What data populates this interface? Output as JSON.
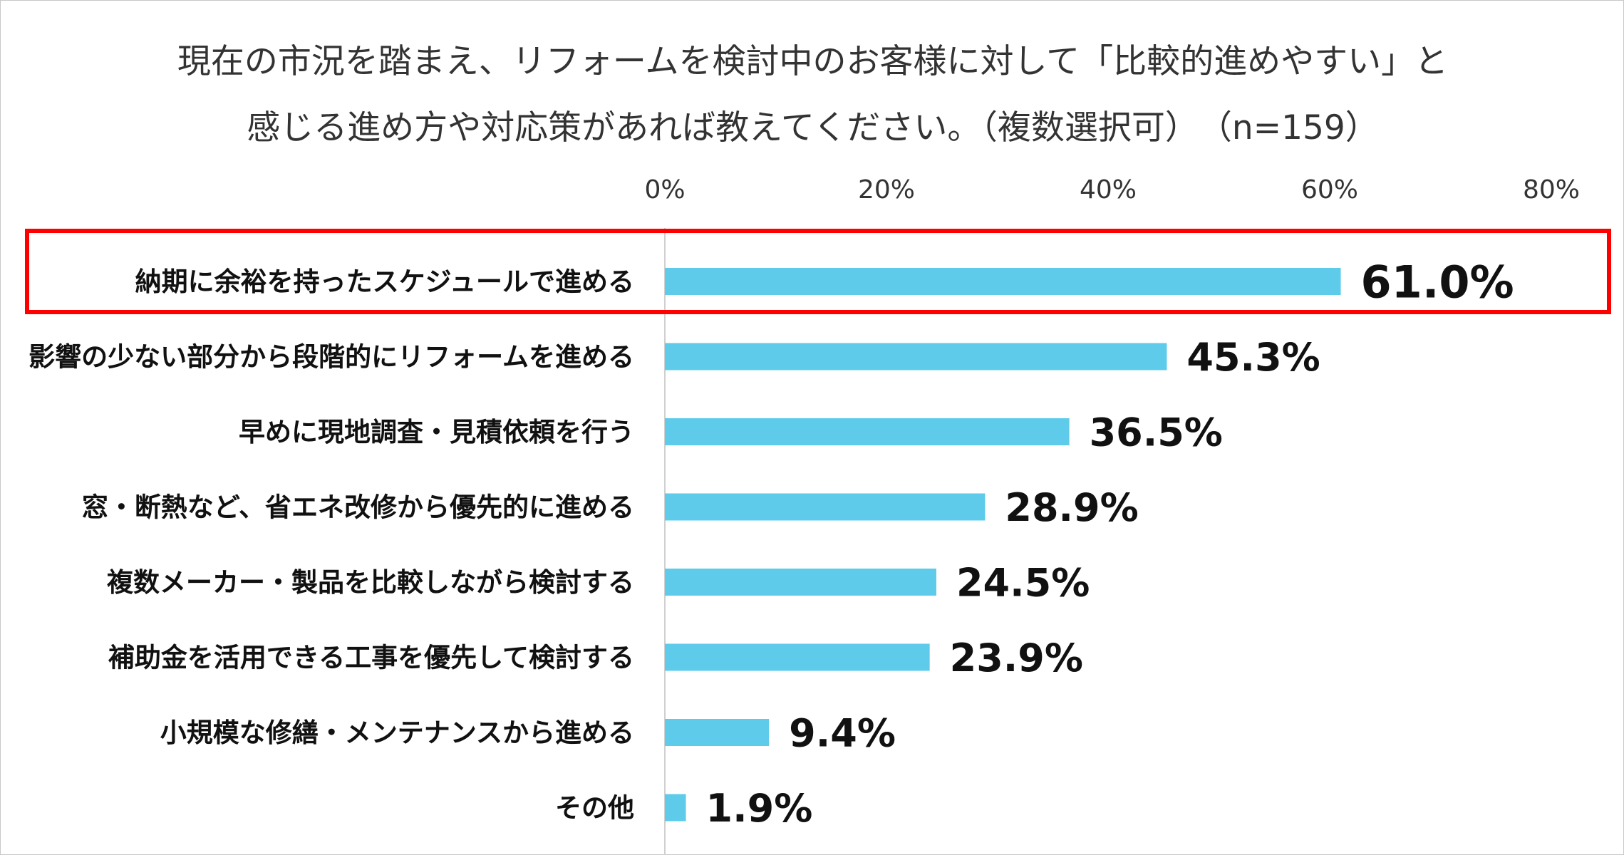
{
  "title": {
    "line1": "現在の市況を踏まえ、リフォームを検討中のお客様に対して「比較的進めやすい」と",
    "line2": "感じる進め方や対応策があれば教えてください。（複数選択可）　（n=159）"
  },
  "chart_data": {
    "type": "bar",
    "orientation": "horizontal",
    "title": "現在の市況を踏まえ、リフォームを検討中のお客様に対して「比較的進めやすい」と感じる進め方や対応策があれば教えてください。（複数選択可）　（n=159）",
    "categories": [
      "納期に余裕を持ったスケジュールで進める",
      "影響の少ない部分から段階的にリフォームを進める",
      "早めに現地調査・見積依頼を行う",
      "窓・断熱など、省エネ改修から優先的に進める",
      "複数メーカー・製品を比較しながら検討する",
      "補助金を活用できる工事を優先して検討する",
      "小規模な修繕・メンテナンスから進める",
      "その他"
    ],
    "values": [
      61.0,
      45.3,
      36.5,
      28.9,
      24.5,
      23.9,
      9.4,
      1.9
    ],
    "value_labels": [
      "61.0%",
      "45.3%",
      "36.5%",
      "28.9%",
      "24.5%",
      "23.9%",
      "9.4%",
      "1.9%"
    ],
    "xlim": [
      0,
      80
    ],
    "x_ticks": [
      "0%",
      "20%",
      "40%",
      "60%",
      "80%"
    ],
    "highlighted_category": "納期に余裕を持ったスケジュールで進める",
    "bar_color": "#5ecbeb",
    "highlight_color": "#ff0000",
    "axis_color": "#d0d0d0"
  }
}
